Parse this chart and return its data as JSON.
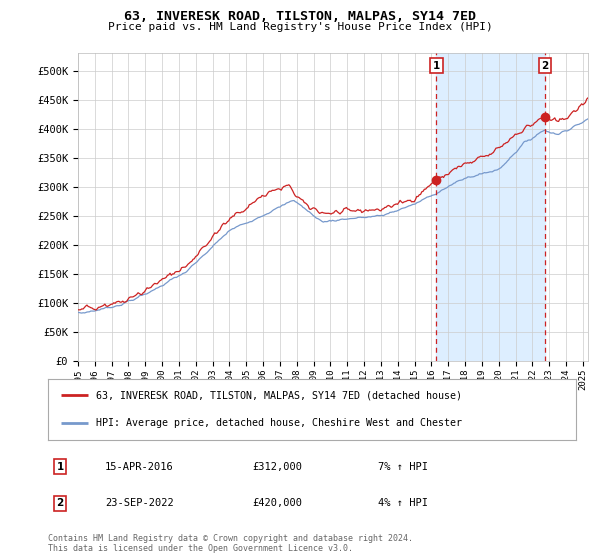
{
  "title": "63, INVERESK ROAD, TILSTON, MALPAS, SY14 7ED",
  "subtitle": "Price paid vs. HM Land Registry's House Price Index (HPI)",
  "ylabel_ticks": [
    "£0",
    "£50K",
    "£100K",
    "£150K",
    "£200K",
    "£250K",
    "£300K",
    "£350K",
    "£400K",
    "£450K",
    "£500K"
  ],
  "ytick_values": [
    0,
    50000,
    100000,
    150000,
    200000,
    250000,
    300000,
    350000,
    400000,
    450000,
    500000
  ],
  "ylim": [
    0,
    530000
  ],
  "xlim_start": 1995.0,
  "xlim_end": 2025.3,
  "hpi_color": "#7799cc",
  "price_color": "#cc2222",
  "shade_color": "#ddeeff",
  "marker1_date": 2016.29,
  "marker2_date": 2022.73,
  "marker1_price": 312000,
  "marker2_price": 420000,
  "legend_label1": "63, INVERESK ROAD, TILSTON, MALPAS, SY14 7ED (detached house)",
  "legend_label2": "HPI: Average price, detached house, Cheshire West and Chester",
  "annotation1_date": "15-APR-2016",
  "annotation1_price": "£312,000",
  "annotation1_hpi": "7% ↑ HPI",
  "annotation2_date": "23-SEP-2022",
  "annotation2_price": "£420,000",
  "annotation2_hpi": "4% ↑ HPI",
  "footnote": "Contains HM Land Registry data © Crown copyright and database right 2024.\nThis data is licensed under the Open Government Licence v3.0.",
  "bg_color": "#ffffff",
  "grid_color": "#cccccc"
}
